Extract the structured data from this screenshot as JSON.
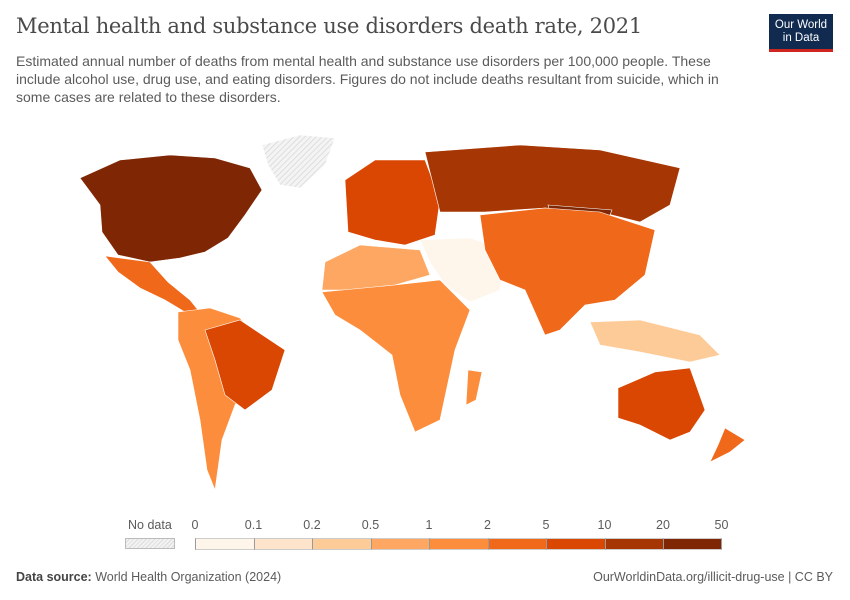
{
  "header": {
    "title": "Mental health and substance use disorders death rate, 2021",
    "subtitle": "Estimated annual number of deaths from mental health and substance use disorders per 100,000 people. These include alcohol use, drug use, and eating disorders. Figures do not include deaths resultant from suicide, which in some cases are related to these disorders.",
    "logo_line1": "Our World",
    "logo_line2": "in Data"
  },
  "colors": {
    "logo_bg": "#102a50",
    "logo_accent": "#ce261e",
    "no_data": "#e6e6e6"
  },
  "chart_data": {
    "type": "choropleth-map",
    "year": 2021,
    "unit": "deaths per 100,000 people",
    "legend": {
      "no_data_label": "No data",
      "ticks": [
        "0",
        "0.1",
        "0.2",
        "0.5",
        "1",
        "2",
        "5",
        "10",
        "20",
        "50"
      ],
      "bin_colors": [
        "#fef5eb",
        "#fee4ca",
        "#fdcb97",
        "#fda762",
        "#fc8d3c",
        "#f0681a",
        "#d94703",
        "#a63603",
        "#7f2704"
      ]
    },
    "regions": [
      {
        "name": "North America (USA, Canada)",
        "bin": "20-50",
        "color": "#7f2704"
      },
      {
        "name": "Greenland",
        "bin": "No data",
        "color": "no-data"
      },
      {
        "name": "Mexico & Central America",
        "bin": "2-5",
        "color": "#f0681a"
      },
      {
        "name": "South America",
        "bin": "1-2",
        "color": "#fc8d3c"
      },
      {
        "name": "Brazil",
        "bin": "5-10",
        "color": "#d94703"
      },
      {
        "name": "Europe",
        "bin": "5-10",
        "color": "#d94703"
      },
      {
        "name": "Russia",
        "bin": "10-20",
        "color": "#a63603"
      },
      {
        "name": "Mongolia",
        "bin": "20-50",
        "color": "#7f2704"
      },
      {
        "name": "North Africa",
        "bin": "0.5-1",
        "color": "#fda762"
      },
      {
        "name": "Sub-Saharan Africa",
        "bin": "1-2",
        "color": "#fc8d3c"
      },
      {
        "name": "Middle East",
        "bin": "0-0.1",
        "color": "#fef5eb"
      },
      {
        "name": "South & East Asia",
        "bin": "2-5",
        "color": "#f0681a"
      },
      {
        "name": "Southeast Asian islands",
        "bin": "0.2-0.5",
        "color": "#fdcb97"
      },
      {
        "name": "Australia",
        "bin": "5-10",
        "color": "#d94703"
      },
      {
        "name": "New Zealand",
        "bin": "2-5",
        "color": "#f0681a"
      },
      {
        "name": "Madagascar",
        "bin": "1-2",
        "color": "#fc8d3c"
      }
    ]
  },
  "footer": {
    "source_label": "Data source:",
    "source": "World Health Organization (2024)",
    "link": "OurWorldinData.org/illicit-drug-use | CC BY"
  }
}
